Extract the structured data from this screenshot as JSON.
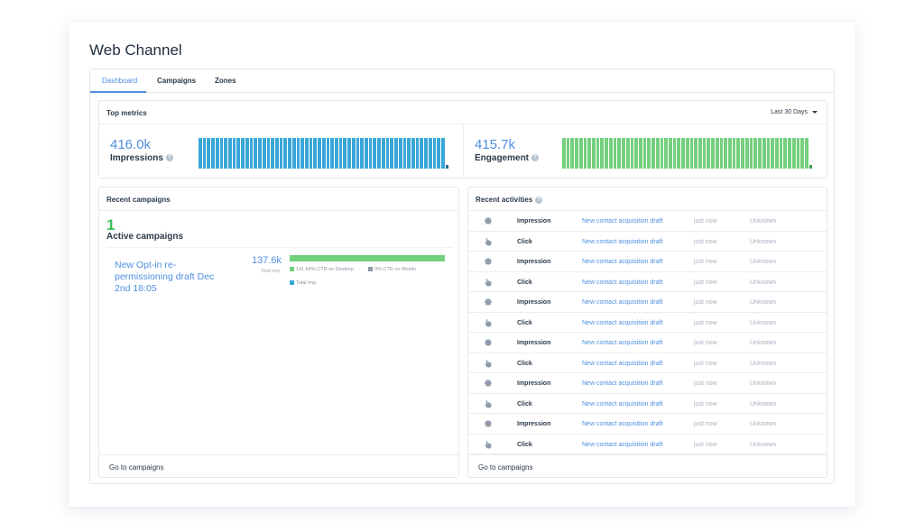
{
  "page": {
    "title": "Web Channel"
  },
  "tabs": [
    {
      "label": "Dashboard",
      "active": true
    },
    {
      "label": "Campaigns",
      "active": false
    },
    {
      "label": "Zones",
      "active": false
    }
  ],
  "top_metrics": {
    "title": "Top metrics",
    "period_label": "Last 30 Days",
    "impressions": {
      "value": "416.0k",
      "label": "Impressions",
      "color": "#3aa6d8",
      "last_color": "#1f6c93",
      "bars": [
        100,
        100,
        100,
        100,
        100,
        100,
        100,
        100,
        100,
        100,
        100,
        100,
        100,
        100,
        100,
        100,
        100,
        100,
        100,
        100,
        100,
        100,
        100,
        100,
        100,
        100,
        100,
        100,
        100,
        100,
        100,
        100,
        100,
        100,
        100,
        100,
        100,
        100,
        100,
        100,
        100,
        100,
        100,
        100,
        100,
        100,
        100,
        100,
        100,
        100,
        100,
        100,
        100,
        100,
        100,
        100,
        100,
        100,
        12
      ]
    },
    "engagement": {
      "value": "415.7k",
      "label": "Engagement",
      "color": "#74d07c",
      "last_color": "#3f9e49",
      "bars": [
        100,
        100,
        100,
        100,
        100,
        100,
        100,
        100,
        100,
        100,
        100,
        100,
        100,
        100,
        100,
        100,
        100,
        100,
        100,
        100,
        100,
        100,
        100,
        100,
        100,
        100,
        100,
        100,
        100,
        100,
        100,
        100,
        100,
        100,
        100,
        100,
        100,
        100,
        100,
        100,
        100,
        100,
        100,
        100,
        100,
        100,
        100,
        100,
        100,
        100,
        100,
        100,
        100,
        100,
        100,
        100,
        100,
        100,
        12
      ]
    }
  },
  "recent_campaigns": {
    "title": "Recent campaigns",
    "active_count": "1",
    "active_label": "Active campaigns",
    "campaign": {
      "name": "New Opt-in re-permissioning draft Dec 2nd 18:05",
      "total": "137.6k",
      "total_label": "Total imp.",
      "ctr_desktop": "141.64% CTR on Desktop",
      "ctr_mobile": "0% CTR on Mobile",
      "total_legend": "Total imp.",
      "desktop_color": "#74d07c",
      "mobile_color": "#8b97a4",
      "total_color": "#3aa6d8",
      "bar_fill": 1.0
    },
    "footer": "Go to campaigns"
  },
  "recent_activities": {
    "title": "Recent activities",
    "rows": [
      {
        "icon": "gear-icon",
        "type": "Impression",
        "campaign": "New contact acquisition draft",
        "time": "just now",
        "location": "Unknown"
      },
      {
        "icon": "hand-pointer-icon",
        "type": "Click",
        "campaign": "New contact acquisition draft",
        "time": "just now",
        "location": "Unknown"
      },
      {
        "icon": "gear-icon",
        "type": "Impression",
        "campaign": "New contact acquisition draft",
        "time": "just now",
        "location": "Unknown"
      },
      {
        "icon": "hand-pointer-icon",
        "type": "Click",
        "campaign": "New contact acquisition draft",
        "time": "just now",
        "location": "Unknown"
      },
      {
        "icon": "gear-icon",
        "type": "Impression",
        "campaign": "New contact acquisition draft",
        "time": "just now",
        "location": "Unknown"
      },
      {
        "icon": "hand-pointer-icon",
        "type": "Click",
        "campaign": "New contact acquisition draft",
        "time": "just now",
        "location": "Unknown"
      },
      {
        "icon": "gear-icon",
        "type": "Impression",
        "campaign": "New contact acquisition draft",
        "time": "just now",
        "location": "Unknown"
      },
      {
        "icon": "hand-pointer-icon",
        "type": "Click",
        "campaign": "New contact acquisition draft",
        "time": "just now",
        "location": "Unknown"
      },
      {
        "icon": "gear-icon",
        "type": "Impression",
        "campaign": "New contact acquisition draft",
        "time": "just now",
        "location": "Unknown"
      },
      {
        "icon": "hand-pointer-icon",
        "type": "Click",
        "campaign": "New contact acquisition draft",
        "time": "just now",
        "location": "Unknown"
      },
      {
        "icon": "gear-icon",
        "type": "Impression",
        "campaign": "New contact acquisition draft",
        "time": "just now",
        "location": "Unknown"
      },
      {
        "icon": "hand-pointer-icon",
        "type": "Click",
        "campaign": "New contact acquisition draft",
        "time": "just now",
        "location": "Unknown"
      }
    ],
    "footer": "Go to campaigns"
  },
  "colors": {
    "accent": "#4f8fe0",
    "success": "#3cc25a",
    "muted": "#a7b1bd"
  }
}
